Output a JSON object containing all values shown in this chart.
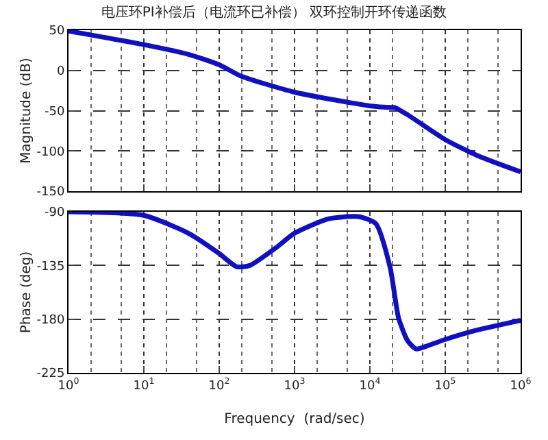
{
  "chart_data": [
    {
      "type": "line",
      "title": "电压环PI补偿后（电流环已补偿） 双环控制开环传递函数",
      "ylabel": "Magnitude (dB)",
      "log": "x",
      "grid": true,
      "tick_labels": "y",
      "marker": "none",
      "line_style": "solid",
      "xlim": [
        1,
        1000000
      ],
      "xticks": [
        {
          "value": 1,
          "label": null
        },
        {
          "value": 10,
          "label": null
        },
        {
          "value": 100,
          "label": null
        },
        {
          "value": 1000,
          "label": null
        },
        {
          "value": 10000,
          "label": null
        },
        {
          "value": 100000,
          "label": null
        },
        {
          "value": 1000000,
          "label": null
        }
      ],
      "ylim": [
        -150,
        50
      ],
      "yticks": [
        -150,
        -100,
        -50,
        0,
        50
      ],
      "x": [
        1,
        10,
        39,
        100,
        195,
        1000,
        10000,
        18600,
        21300,
        31600,
        100000,
        270000,
        1000000
      ],
      "series": [
        {
          "color": "#1010c0",
          "values": [
            49,
            32,
            20,
            7,
            -7,
            -27,
            -44,
            -46,
            -46,
            -55,
            -86,
            -106,
            -126
          ]
        }
      ]
    },
    {
      "type": "line",
      "xlabel": "Frequency  (rad/sec)",
      "ylabel": "Phase (deg)",
      "log": "x",
      "grid": true,
      "marker": "none",
      "line_style": "solid",
      "xlim": [
        1,
        1000000
      ],
      "xticks": [
        {
          "value": 1,
          "label": "10$^{0}$"
        },
        {
          "value": 10,
          "label": "10$^{1}$"
        },
        {
          "value": 100,
          "label": "10$^{2}$"
        },
        {
          "value": 1000,
          "label": "10$^{3}$"
        },
        {
          "value": 10000,
          "label": "10$^{4}$"
        },
        {
          "value": 100000,
          "label": "10$^{5}$"
        },
        {
          "value": 1000000,
          "label": "10$^{6}$"
        }
      ],
      "ylim": [
        -225,
        -90
      ],
      "yticks": [
        -225,
        -180,
        -135,
        -90
      ],
      "x": [
        1,
        10,
        39,
        100,
        170,
        254,
        570,
        1000,
        2800,
        7000,
        12000,
        18600,
        24000,
        31600,
        41000,
        60000,
        100000,
        234000,
        1000000
      ],
      "series": [
        {
          "color": "#1010c0",
          "values": [
            -90,
            -93,
            -108,
            -125,
            -136,
            -135,
            -120,
            -108,
            -96,
            -94,
            -100,
            -137,
            -179,
            -198,
            -205,
            -202,
            -197,
            -190,
            -181
          ]
        }
      ]
    }
  ]
}
